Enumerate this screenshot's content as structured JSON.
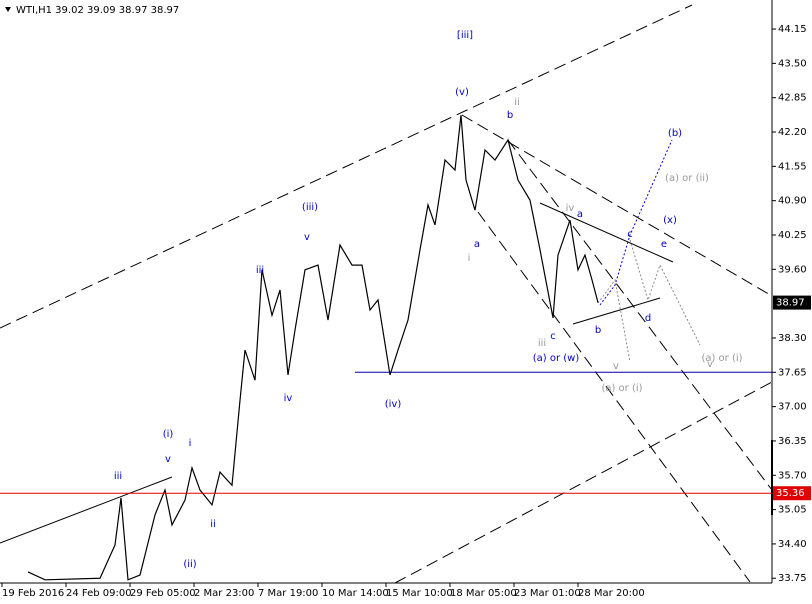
{
  "chart_data": {
    "type": "line",
    "header": "WTI,H1  39.02 39.09 38.97 38.97",
    "xlim": [
      0,
      772
    ],
    "ylim": [
      33.66,
      44.7
    ],
    "xticks": [
      {
        "value": 2,
        "label": "19 Feb 2016"
      },
      {
        "value": 66,
        "label": "24 Feb 09:00"
      },
      {
        "value": 130,
        "label": "29 Feb 05:00"
      },
      {
        "value": 194,
        "label": "2 Mar 23:00"
      },
      {
        "value": 258,
        "label": "7 Mar 19:00"
      },
      {
        "value": 322,
        "label": "10 Mar 14:00"
      },
      {
        "value": 386,
        "label": "15 Mar 10:00"
      },
      {
        "value": 450,
        "label": "18 Mar 05:00"
      },
      {
        "value": 514,
        "label": "23 Mar 01:00"
      },
      {
        "value": 578,
        "label": "28 Mar 20:00"
      }
    ],
    "yticks": [
      44.15,
      {
        "value": 43.5,
        "label": "43.50"
      },
      {
        "value": 42.85,
        "label": "42.85"
      },
      {
        "value": 42.2,
        "label": "42.20"
      },
      41.55,
      {
        "value": 40.9,
        "label": "40.90"
      },
      40.25,
      {
        "value": 39.6,
        "label": "39.60"
      },
      {
        "value": 38.3,
        "label": "38.30"
      },
      37.65,
      {
        "value": 37.0,
        "label": "37.00"
      },
      36.35,
      {
        "value": 35.7,
        "label": "35.70"
      },
      35.05,
      {
        "value": 34.4,
        "label": "34.40"
      },
      33.75
    ],
    "series": [
      {
        "name": "WTI",
        "color": "#000000",
        "x": [
          28,
          45,
          100,
          115,
          121,
          128,
          140,
          145,
          155,
          165,
          172,
          185,
          192,
          200,
          212,
          220,
          232,
          240,
          245,
          255,
          262,
          272,
          280,
          288,
          295,
          305,
          318,
          328,
          340,
          352,
          362,
          370,
          378,
          390,
          398,
          408,
          420,
          428,
          435,
          445,
          455,
          461,
          466,
          475,
          485,
          495,
          508,
          518,
          530,
          540,
          553,
          558,
          570,
          578,
          585,
          592,
          598
        ],
        "values": [
          33.87,
          33.72,
          33.75,
          34.38,
          35.27,
          33.72,
          33.81,
          34.19,
          34.95,
          35.42,
          34.76,
          35.23,
          35.84,
          35.42,
          35.14,
          35.76,
          35.51,
          37.12,
          38.07,
          37.5,
          39.59,
          38.73,
          39.21,
          37.6,
          38.45,
          39.59,
          39.68,
          38.64,
          40.06,
          39.68,
          39.68,
          38.83,
          39.02,
          37.6,
          38.07,
          38.64,
          39.97,
          40.82,
          40.44,
          41.67,
          41.48,
          42.52,
          41.29,
          40.72,
          41.86,
          41.67,
          42.05,
          41.29,
          40.91,
          39.97,
          38.68,
          39.87,
          40.53,
          39.59,
          39.87,
          39.4,
          38.97
        ]
      }
    ],
    "price_lines": [
      {
        "value": 38.97,
        "color": "#000000"
      },
      {
        "value": 35.36,
        "color": "#e00000"
      }
    ],
    "support_line": {
      "value": 37.65,
      "color": "#0000aa"
    },
    "annotations": [
      {
        "text": "[iii]",
        "color": "#0000cc"
      },
      {
        "text": "(v)",
        "color": "#0000cc"
      },
      {
        "text": "ii",
        "color": "#999999"
      },
      {
        "text": "b",
        "color": "#0000cc"
      },
      {
        "text": "(iii)",
        "color": "#0000cc"
      },
      {
        "text": "v",
        "color": "#0000cc"
      },
      {
        "text": "iii",
        "color": "#0000cc"
      },
      {
        "text": "iv",
        "color": "#0000cc"
      },
      {
        "text": "(iv)",
        "color": "#0000cc"
      },
      {
        "text": "a",
        "color": "#0000cc"
      },
      {
        "text": "i",
        "color": "#999999"
      },
      {
        "text": "iv",
        "color": "#999999"
      },
      {
        "text": "a",
        "color": "#0000cc"
      },
      {
        "text": "iii",
        "color": "#999999"
      },
      {
        "text": "c",
        "color": "#0000cc"
      },
      {
        "text": "(a) or (w)",
        "color": "#0000cc"
      },
      {
        "text": "b",
        "color": "#0000cc"
      },
      {
        "text": "d",
        "color": "#0000cc"
      },
      {
        "text": "c",
        "color": "#0000cc"
      },
      {
        "text": "e",
        "color": "#0000cc"
      },
      {
        "text": "(x)",
        "color": "#0000cc"
      },
      {
        "text": "(b)",
        "color": "#0000cc"
      },
      {
        "text": "(a) or (ii)",
        "color": "#999999"
      },
      {
        "text": "v",
        "color": "#999999"
      },
      {
        "text": "(a) or (i)",
        "color": "#999999"
      },
      {
        "text": "v",
        "color": "#999999"
      },
      {
        "text": "(a) or (i)",
        "color": "#999999"
      },
      {
        "text": "(i)",
        "color": "#0000cc"
      },
      {
        "text": "v",
        "color": "#0000cc"
      },
      {
        "text": "i",
        "color": "#0000cc"
      },
      {
        "text": "iii",
        "color": "#0000cc"
      },
      {
        "text": "ii",
        "color": "#0000cc"
      },
      {
        "text": "(ii)",
        "color": "#0000cc"
      }
    ]
  }
}
